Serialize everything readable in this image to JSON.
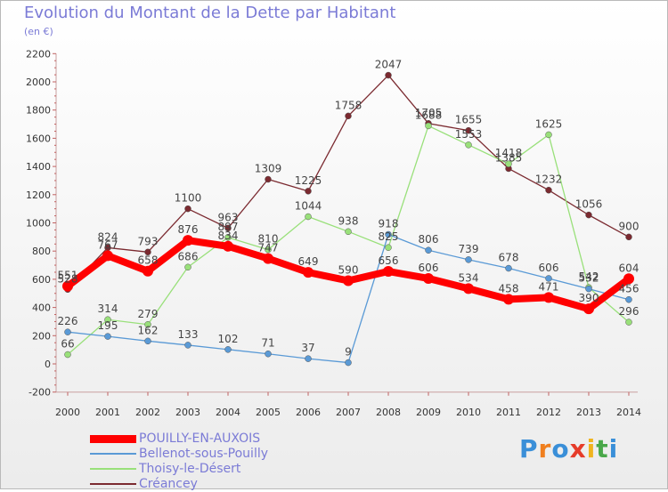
{
  "header": {
    "title": "Evolution du Montant de la Dette par Habitant",
    "subtitle": "(en €)"
  },
  "chart_data": {
    "type": "line",
    "title": "Evolution du Montant de la Dette par Habitant",
    "ylabel": "(en €)",
    "xlabel": "",
    "ylim": [
      -200,
      2200
    ],
    "yticks": [
      -200,
      0,
      200,
      400,
      600,
      800,
      1000,
      1200,
      1400,
      1600,
      1800,
      2000,
      2200
    ],
    "grid": false,
    "legend_position": "bottom-left",
    "categories": [
      "2000",
      "2001",
      "2002",
      "2003",
      "2004",
      "2005",
      "2006",
      "2007",
      "2008",
      "2009",
      "2010",
      "2011",
      "2012",
      "2013",
      "2014"
    ],
    "series": [
      {
        "name": "POUILLY-EN-AUXOIS",
        "color": "#ff0000",
        "values": [
          551,
          767,
          658,
          876,
          834,
          747,
          649,
          590,
          656,
          606,
          534,
          458,
          471,
          390,
          604
        ]
      },
      {
        "name": "Bellenot-sous-Pouilly",
        "color": "#5a9ad6",
        "values": [
          226,
          195,
          162,
          133,
          102,
          71,
          37,
          9,
          918,
          806,
          739,
          678,
          606,
          532,
          456
        ]
      },
      {
        "name": "Thoisy-le-Désert",
        "color": "#99e07a",
        "values": [
          66,
          314,
          279,
          686,
          897,
          810,
          1044,
          938,
          825,
          1688,
          1553,
          1418,
          1625,
          542,
          296
        ]
      },
      {
        "name": "Créancey",
        "color": "#7b2a30",
        "values": [
          528,
          824,
          793,
          1100,
          963,
          1309,
          1225,
          1758,
          2047,
          1705,
          1655,
          1385,
          1232,
          1056,
          900
        ]
      }
    ]
  },
  "logo": {
    "letters": [
      "P",
      "r",
      "o",
      "x",
      "i",
      "t",
      "i"
    ],
    "colors": [
      "#3a8fd8",
      "#f07f1e",
      "#3a8fd8",
      "#e63c2a",
      "#f0b41e",
      "#4aa84a",
      "#3a8fd8"
    ]
  }
}
